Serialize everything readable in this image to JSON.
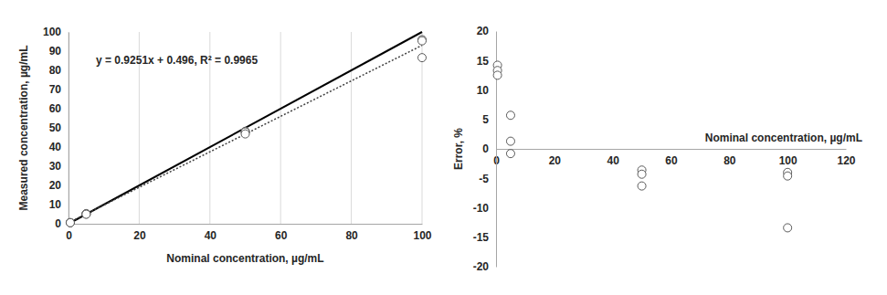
{
  "chart_data": [
    {
      "type": "scatter",
      "x_label": "Nominal concentration, µg/mL",
      "y_label": "Measured concentration, µg/mL",
      "xlim": [
        0,
        100
      ],
      "ylim": [
        0,
        100
      ],
      "xticks": [
        0,
        20,
        40,
        60,
        80,
        100
      ],
      "yticks": [
        0,
        10,
        20,
        30,
        40,
        50,
        60,
        70,
        80,
        90,
        100
      ],
      "grid": "x",
      "annotations": [
        {
          "text": "y = 0.9251x + 0.496, R² = 0.9965"
        }
      ],
      "series": [
        {
          "type": "line",
          "line_style": "solid",
          "color": "#000000",
          "x": [
            0,
            100
          ],
          "values": [
            0,
            100
          ]
        },
        {
          "type": "line",
          "line_style": "dotted",
          "color": "#404040",
          "x": [
            0,
            100
          ],
          "values": [
            0.496,
            93.006
          ]
        },
        {
          "type": "scatter",
          "marker": "open-circle",
          "color": "#595959",
          "x": [
            0.5,
            0.5,
            0.5,
            5,
            5,
            5,
            50,
            50,
            50,
            100,
            100,
            100
          ],
          "values": [
            0.571,
            0.567,
            0.563,
            5.29,
            5.07,
            4.96,
            48.2,
            47.85,
            46.85,
            96.0,
            95.4,
            86.6
          ]
        }
      ]
    },
    {
      "type": "scatter",
      "x_label": "Nominal concentration, µg/mL",
      "y_label": "Error, %",
      "xlim": [
        0,
        120
      ],
      "ylim": [
        -20,
        20
      ],
      "xticks": [
        0,
        20,
        40,
        60,
        80,
        100,
        120
      ],
      "yticks": [
        -20,
        -15,
        -10,
        -5,
        0,
        5,
        10,
        15,
        20
      ],
      "grid": false,
      "series": [
        {
          "type": "scatter",
          "marker": "open-circle",
          "color": "#595959",
          "x": [
            0.5,
            0.5,
            0.5,
            5,
            5,
            5,
            50,
            50,
            50,
            100,
            100,
            100
          ],
          "values": [
            14.2,
            13.3,
            12.5,
            5.7,
            1.3,
            -0.8,
            -3.6,
            -4.3,
            -6.3,
            -4.0,
            -4.6,
            -13.4
          ]
        }
      ]
    }
  ]
}
